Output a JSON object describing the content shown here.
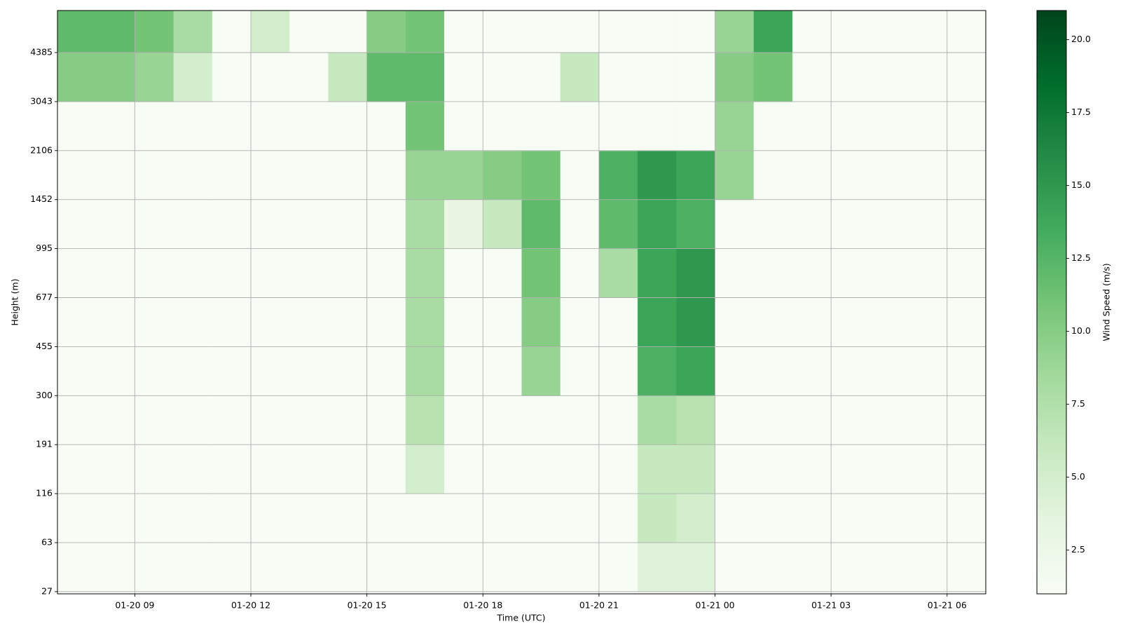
{
  "chart_data": {
    "type": "heatmap",
    "x_label": "Time (UTC)",
    "y_label": "Height (m)",
    "colorbar_label": "Wind Speed (m/s)",
    "grid": true,
    "colormap": [
      "#f7fcf5",
      "#e5f5e0",
      "#c7e9c0",
      "#a1d99b",
      "#74c476",
      "#41ab5d",
      "#238b45",
      "#006d2c",
      "#00441b"
    ],
    "x": [
      "01-20 07",
      "01-20 08",
      "01-20 09",
      "01-20 10",
      "01-20 11",
      "01-20 12",
      "01-20 13",
      "01-20 14",
      "01-20 15",
      "01-20 16",
      "01-20 17",
      "01-20 18",
      "01-20 19",
      "01-20 20",
      "01-20 21",
      "01-20 22",
      "01-20 23",
      "01-21 00",
      "01-21 01",
      "01-21 02",
      "01-21 03",
      "01-21 04",
      "01-21 05",
      "01-21 06"
    ],
    "y": [
      27,
      63,
      116,
      191,
      300,
      455,
      677,
      995,
      1452,
      2106,
      3043,
      4385
    ],
    "z": [
      [
        1,
        1,
        1,
        1,
        1,
        1,
        1,
        1,
        1,
        1,
        1,
        1,
        1,
        1,
        1,
        4,
        4,
        1,
        1,
        1,
        1,
        1,
        1,
        1
      ],
      [
        1,
        1,
        1,
        1,
        1,
        1,
        1,
        1,
        1,
        1,
        1,
        1,
        1,
        1,
        1,
        6,
        5,
        1,
        1,
        1,
        1,
        1,
        1,
        1
      ],
      [
        1,
        1,
        1,
        1,
        1,
        1,
        1,
        1,
        1,
        5,
        1,
        1,
        1,
        1,
        1,
        6,
        6,
        1,
        1,
        1,
        1,
        1,
        1,
        1
      ],
      [
        1,
        1,
        1,
        1,
        1,
        1,
        1,
        1,
        1,
        7,
        1,
        1,
        1,
        1,
        1,
        8,
        7,
        1,
        1,
        1,
        1,
        1,
        1,
        1
      ],
      [
        1,
        1,
        1,
        1,
        1,
        1,
        1,
        1,
        1,
        8,
        1,
        1,
        9,
        1,
        1,
        13,
        14,
        1,
        1,
        1,
        1,
        1,
        1,
        1
      ],
      [
        1,
        1,
        1,
        1,
        1,
        1,
        1,
        1,
        1,
        8,
        1,
        1,
        10,
        1,
        1,
        14,
        15,
        1,
        1,
        1,
        1,
        1,
        1,
        1
      ],
      [
        1,
        1,
        1,
        1,
        1,
        1,
        1,
        1,
        1,
        8,
        1,
        1,
        11,
        1,
        8,
        14,
        15,
        1,
        1,
        1,
        1,
        1,
        1,
        1
      ],
      [
        1,
        1,
        1,
        1,
        1,
        1,
        1,
        1,
        1,
        8,
        3,
        6,
        12,
        1,
        12,
        14,
        13,
        1,
        1,
        1,
        1,
        1,
        1,
        1
      ],
      [
        1,
        1,
        1,
        1,
        1,
        1,
        1,
        1,
        1,
        9,
        9,
        10,
        11,
        1,
        13,
        15,
        14,
        9,
        1,
        1,
        1,
        1,
        1,
        1
      ],
      [
        1,
        1,
        1,
        1,
        1,
        1,
        1,
        1,
        1,
        11,
        1,
        1,
        1,
        1,
        1,
        1,
        1,
        9,
        1,
        1,
        1,
        1,
        1,
        1
      ],
      [
        10,
        10,
        9,
        5,
        1,
        1,
        1,
        6,
        12,
        12,
        1,
        1,
        1,
        6,
        1,
        1,
        1,
        10,
        11,
        1,
        1,
        1,
        1,
        1
      ],
      [
        12,
        12,
        11,
        8,
        1,
        5,
        1,
        1,
        10,
        11,
        1,
        1,
        1,
        1,
        1,
        1,
        1,
        9,
        14,
        1,
        1,
        1,
        1,
        1
      ]
    ],
    "xlim": [
      "01-20 07",
      "01-21 07"
    ],
    "xticks": [
      "01-20 09",
      "01-20 12",
      "01-20 15",
      "01-20 18",
      "01-20 21",
      "01-21 00",
      "01-21 03",
      "01-21 06"
    ],
    "ylim": [
      26,
      6000
    ],
    "yticks": [
      27,
      63,
      116,
      191,
      300,
      455,
      677,
      995,
      1452,
      2106,
      3043,
      4385
    ],
    "clim": [
      1,
      21
    ],
    "cticks": [
      2.5,
      {
        "value": 5,
        "label": "5.0"
      },
      7.5,
      {
        "value": 10,
        "label": "10.0"
      },
      12.5,
      {
        "value": 15,
        "label": "15.0"
      },
      17.5,
      {
        "value": 20,
        "label": "20.0"
      }
    ]
  }
}
